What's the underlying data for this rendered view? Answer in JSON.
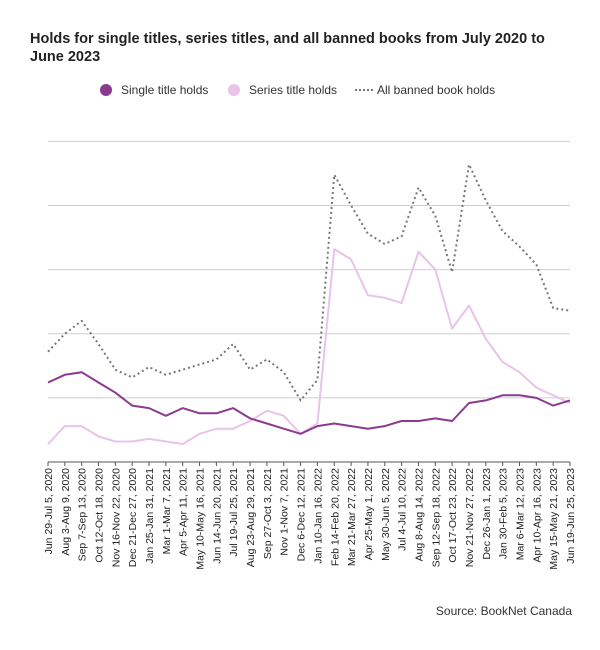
{
  "chart_data": {
    "type": "line",
    "title": "Holds for single titles, series titles, and all banned books from July 2020 to June 2023",
    "xlabel": "",
    "ylabel": "",
    "grid": true,
    "legend_position": "top",
    "categories": [
      "Jun 29-Jul 5, 2020",
      "Aug 3-Aug 9, 2020",
      "Sep 7-Sep 13, 2020",
      "Oct 12-Oct 18, 2020",
      "Nov 16-Nov 22, 2020",
      "Dec 21-Dec 27, 2020",
      "Jan 25-Jan 31, 2021",
      "Mar 1-Mar 7, 2021",
      "Apr 5-Apr 11, 2021",
      "May 10-May 16, 2021",
      "Jun 14-Jun 20, 2021",
      "Jul 19-Jul 25, 2021",
      "Aug 23-Aug 29, 2021",
      "Sep 27-Oct 3, 2021",
      "Nov 1-Nov 7, 2021",
      "Dec 6-Dec 12, 2021",
      "Jan 10-Jan 16, 2022",
      "Feb 14-Feb 20, 2022",
      "Mar 21-Mar 27, 2022",
      "Apr 25-May 1, 2022",
      "May 30-Jun 5, 2022",
      "Jul 4-Jul 10, 2022",
      "Aug 8-Aug 14, 2022",
      "Sep 12-Sep 18, 2022",
      "Oct 17-Oct 23, 2022",
      "Nov 21-Nov 27, 2022",
      "Dec 26-Jan 1, 2023",
      "Jan 30-Feb 5, 2023",
      "Mar 6-Mar 12, 2023",
      "Apr 10-Apr 16, 2023",
      "May 15-May 21, 2023",
      "Jun 19-Jun 25, 2023"
    ],
    "y_range": [
      0,
      100
    ],
    "series": [
      {
        "name": "Single title holds",
        "color": "#8B3A8F",
        "values": [
          31,
          34,
          35,
          31,
          27,
          22,
          21,
          18,
          21,
          19,
          19,
          21,
          17,
          15,
          13,
          11,
          14,
          15,
          14,
          13,
          14,
          16,
          16,
          17,
          16,
          23,
          24,
          26,
          26,
          25,
          22,
          24
        ]
      },
      {
        "name": "Series title holds",
        "color": "#E9C3E8",
        "values": [
          7,
          14,
          14,
          10,
          8,
          8,
          9,
          8,
          7,
          11,
          13,
          13,
          16,
          20,
          18,
          11,
          15,
          83,
          79,
          65,
          64,
          62,
          82,
          75,
          52,
          61,
          48,
          39,
          35,
          29,
          26,
          23
        ]
      },
      {
        "name": "All banned book holds",
        "color": "#777777",
        "values": [
          43,
          50,
          55,
          46,
          36,
          33,
          37,
          34,
          36,
          38,
          40,
          46,
          36,
          40,
          35,
          24,
          32,
          112,
          100,
          89,
          85,
          88,
          107,
          96,
          74,
          116,
          102,
          90,
          84,
          77,
          60,
          59
        ]
      }
    ]
  },
  "source": "Source: BookNet Canada"
}
